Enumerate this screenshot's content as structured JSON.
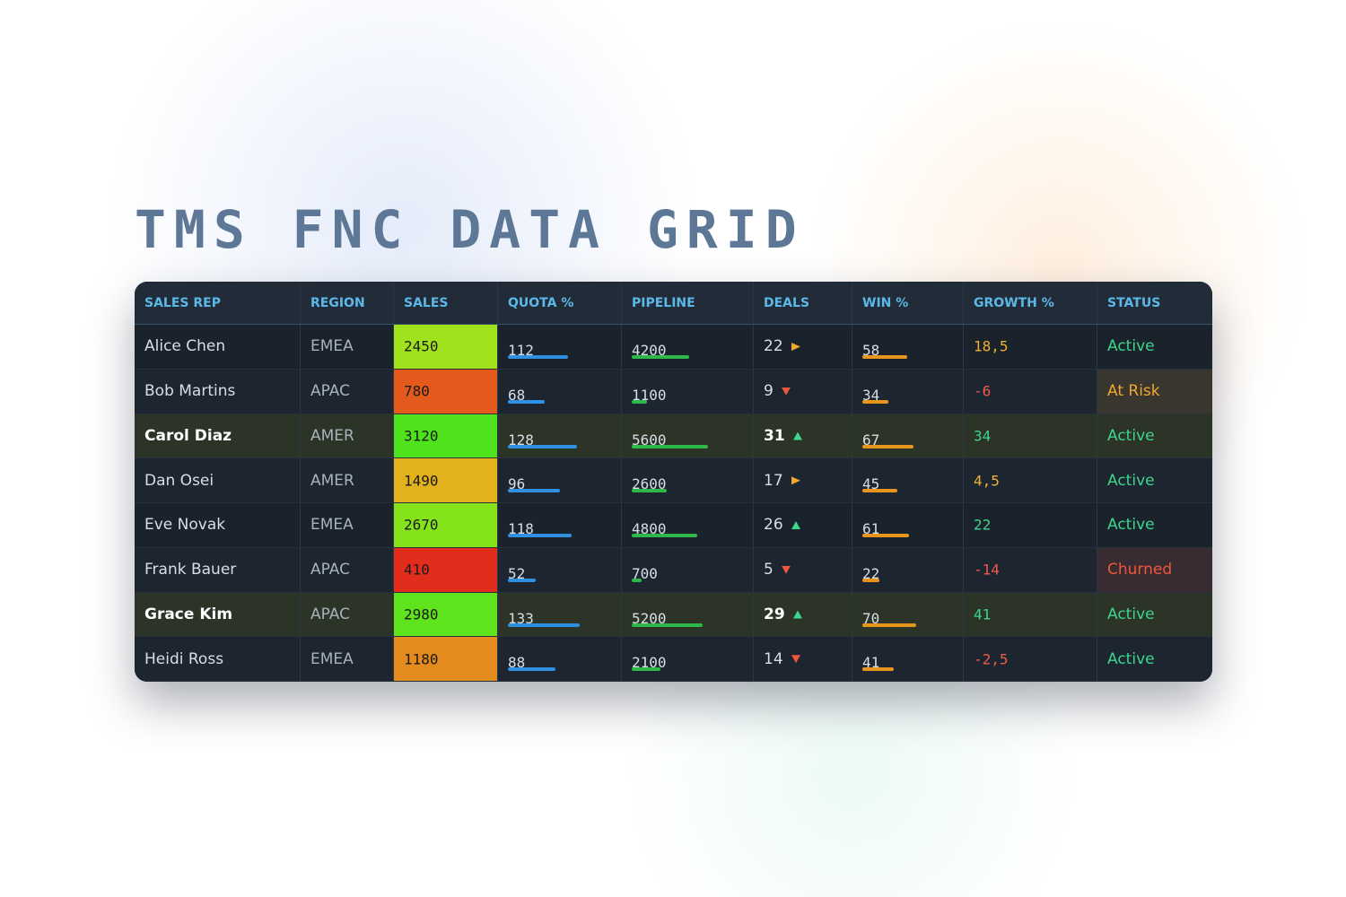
{
  "title": "TMS FNC DATA GRID",
  "columns": [
    "SALES REP",
    "REGION",
    "SALES",
    "QUOTA %",
    "PIPELINE",
    "DEALS",
    "WIN %",
    "GROWTH %",
    "STATUS"
  ],
  "rows": [
    {
      "name": "Alice Chen",
      "region": "EMEA",
      "sales": 2450,
      "quota": 112,
      "pipeline": 4200,
      "deals": 22,
      "trend": "flat",
      "win": 58,
      "growth": {
        "value": 18.5,
        "label": "18,5"
      },
      "status": "Active",
      "status_color": "#3dd68c",
      "highlight": false
    },
    {
      "name": "Bob Martins",
      "region": "APAC",
      "sales": 780,
      "quota": 68,
      "pipeline": 1100,
      "deals": 9,
      "trend": "down",
      "win": 34,
      "growth": -6,
      "status": "At Risk",
      "status_color": "#f0a830",
      "highlight": false
    },
    {
      "name": "Carol Diaz",
      "region": "AMER",
      "sales": 3120,
      "quota": 128,
      "pipeline": 5600,
      "deals": 31,
      "trend": "up",
      "win": 67,
      "growth": 34,
      "status": "Active",
      "status_color": "#3dd68c",
      "highlight": true
    },
    {
      "name": "Dan Osei",
      "region": "AMER",
      "sales": 1490,
      "quota": 96,
      "pipeline": 2600,
      "deals": 17,
      "trend": "flat",
      "win": 45,
      "growth": {
        "value": 4.5,
        "label": "4,5"
      },
      "status": "Active",
      "status_color": "#3dd68c",
      "highlight": false
    },
    {
      "name": "Eve Novak",
      "region": "EMEA",
      "sales": 2670,
      "quota": 118,
      "pipeline": 4800,
      "deals": 26,
      "trend": "up",
      "win": 61,
      "growth": 22,
      "status": "Active",
      "status_color": "#3dd68c",
      "highlight": false
    },
    {
      "name": "Frank Bauer",
      "region": "APAC",
      "sales": 410,
      "quota": 52,
      "pipeline": 700,
      "deals": 5,
      "trend": "down",
      "win": 22,
      "growth": -14,
      "status": "Churned",
      "status_color": "#f0563a",
      "highlight": false
    },
    {
      "name": "Grace Kim",
      "region": "APAC",
      "sales": 2980,
      "quota": 133,
      "pipeline": 5200,
      "deals": 29,
      "trend": "up",
      "win": 70,
      "growth": 41,
      "status": "Active",
      "status_color": "#3dd68c",
      "highlight": true
    },
    {
      "name": "Heidi Ross",
      "region": "EMEA",
      "sales": 1180,
      "quota": 88,
      "pipeline": 2100,
      "deals": 14,
      "trend": "down",
      "win": 41,
      "growth": {
        "value": -2.5,
        "label": "-2,5"
      },
      "status": "Active",
      "status_color": "#3dd68c",
      "highlight": false
    }
  ]
}
